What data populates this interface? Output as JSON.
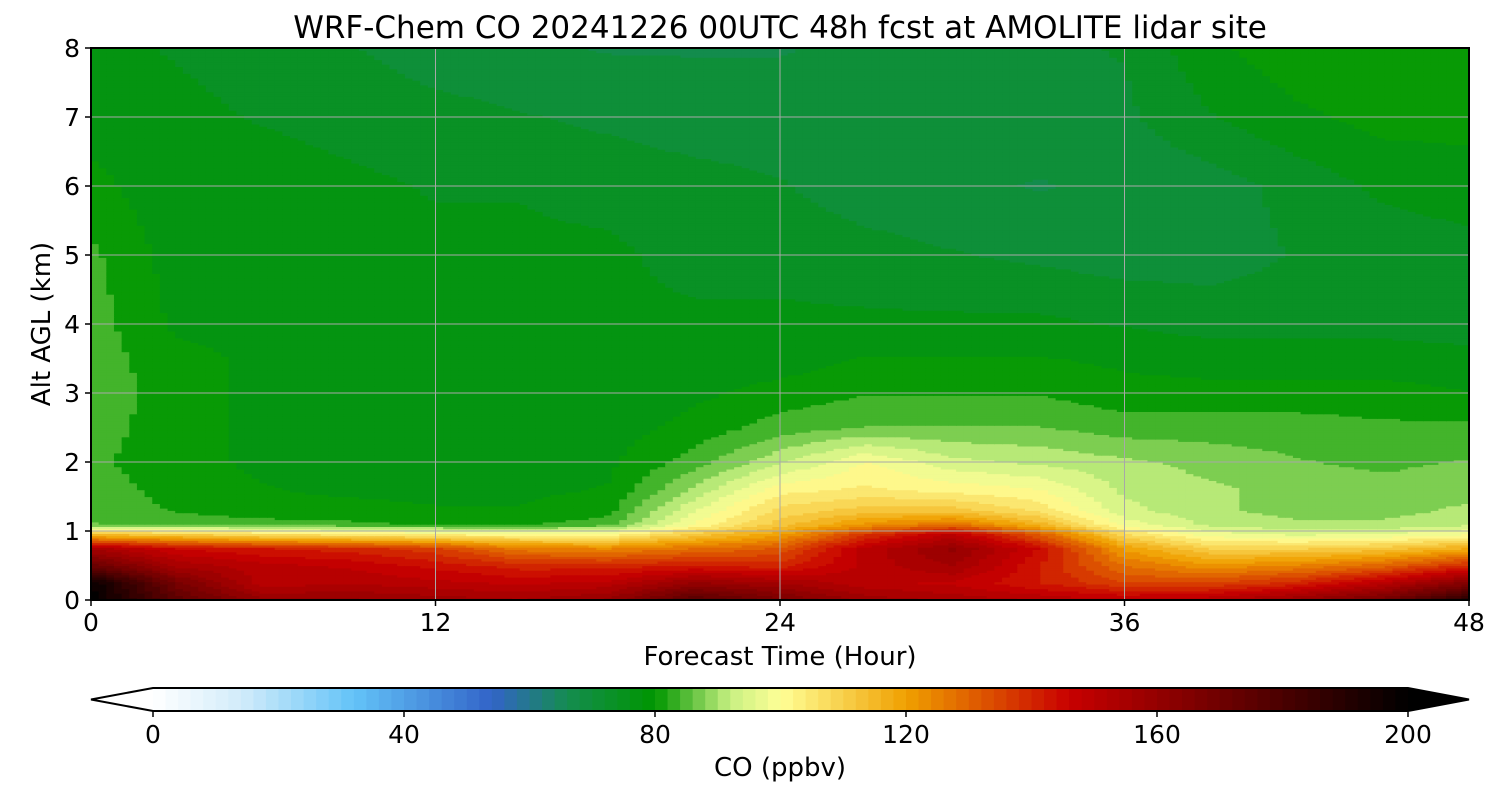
{
  "chart_data": {
    "type": "heatmap",
    "title": "WRF-Chem CO  20241226 00UTC 48h fcst at AMOLITE lidar site",
    "xlabel": "Forecast Time (Hour)",
    "ylabel": "Alt AGL (km)",
    "xlim": [
      0,
      48
    ],
    "ylim": [
      0,
      8
    ],
    "x_ticks": [
      "0",
      "12",
      "24",
      "36",
      "48"
    ],
    "y_ticks": [
      "0",
      "1",
      "2",
      "3",
      "4",
      "5",
      "6",
      "7",
      "8"
    ],
    "grid": true,
    "x": [
      0,
      3,
      6,
      9,
      12,
      15,
      18,
      21,
      24,
      27,
      30,
      33,
      36,
      39,
      42,
      45,
      48
    ],
    "y": [
      0,
      0.25,
      0.5,
      0.75,
      0.95,
      1.1,
      1.3,
      1.6,
      2,
      2.5,
      3,
      3.5,
      4,
      5,
      6,
      7,
      8
    ],
    "z": [
      [
        200,
        175,
        160,
        160,
        158,
        156,
        160,
        178,
        168,
        158,
        155,
        152,
        150,
        152,
        160,
        170,
        190
      ],
      [
        198,
        168,
        150,
        152,
        150,
        148,
        150,
        160,
        156,
        150,
        148,
        142,
        135,
        135,
        140,
        150,
        165
      ],
      [
        172,
        155,
        150,
        148,
        144,
        140,
        140,
        142,
        140,
        150,
        156,
        142,
        128,
        122,
        125,
        130,
        140
      ],
      [
        155,
        145,
        142,
        140,
        136,
        126,
        124,
        128,
        132,
        150,
        160,
        145,
        120,
        110,
        110,
        112,
        118
      ],
      [
        115,
        112,
        108,
        106,
        104,
        102,
        102,
        112,
        120,
        138,
        150,
        132,
        108,
        98,
        96,
        97,
        100
      ],
      [
        86,
        85,
        84,
        83,
        82,
        82,
        84,
        100,
        112,
        122,
        128,
        116,
        98,
        92,
        90,
        90,
        92
      ],
      [
        84,
        82,
        80,
        80,
        79,
        79,
        81,
        96,
        108,
        112,
        112,
        106,
        94,
        90,
        88,
        88,
        90
      ],
      [
        84,
        81,
        79,
        78,
        78,
        78,
        79,
        90,
        102,
        104,
        102,
        100,
        92,
        90,
        88,
        87,
        88
      ],
      [
        83,
        80,
        78,
        77,
        77,
        77,
        78,
        84,
        92,
        100,
        94,
        92,
        90,
        88,
        86,
        85,
        86
      ],
      [
        84,
        80,
        78,
        77,
        76,
        76,
        77,
        80,
        84,
        86,
        86,
        86,
        84,
        84,
        84,
        83,
        83
      ],
      [
        85,
        80,
        78,
        76,
        76,
        76,
        76,
        78,
        80,
        82,
        82,
        82,
        80,
        80,
        80,
        80,
        79
      ],
      [
        84,
        80,
        78,
        76,
        76,
        76,
        76,
        77,
        77,
        79,
        79,
        79,
        78,
        77,
        77,
        77,
        76
      ],
      [
        84,
        78,
        77,
        76,
        76,
        76,
        76,
        76,
        76,
        76,
        76,
        76,
        75,
        74,
        74,
        74,
        74
      ],
      [
        83,
        77,
        76,
        76,
        76,
        76,
        76,
        74,
        74,
        73,
        72,
        71,
        70,
        70,
        72,
        73,
        74
      ],
      [
        80,
        76,
        77,
        76,
        75,
        75,
        74,
        73,
        72,
        70,
        69,
        68,
        69,
        70,
        73,
        76,
        77
      ],
      [
        77,
        76,
        75,
        74,
        73,
        72,
        71,
        70,
        70,
        70,
        70,
        70,
        71,
        75,
        78,
        80,
        80
      ],
      [
        76,
        75,
        74,
        72,
        70,
        69,
        68,
        68,
        68,
        69,
        70,
        71,
        72,
        78,
        81,
        81,
        80
      ]
    ],
    "colorbar": {
      "label": "CO  (ppbv)",
      "ticks": [
        "0",
        "40",
        "80",
        "120",
        "160",
        "200"
      ],
      "min": 0,
      "max": 200,
      "extend": "both",
      "colors": [
        "#ffffff",
        "#d2ecfa",
        "#63c3f8",
        "#3264c8",
        "#148c50",
        "#009600",
        "#c8f082",
        "#ffff96",
        "#f0a000",
        "#c80000",
        "#000000"
      ]
    }
  }
}
